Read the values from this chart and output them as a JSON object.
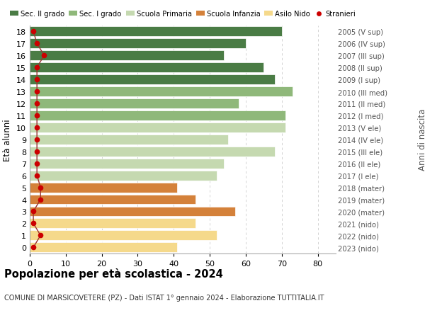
{
  "ages": [
    0,
    1,
    2,
    3,
    4,
    5,
    6,
    7,
    8,
    9,
    10,
    11,
    12,
    13,
    14,
    15,
    16,
    17,
    18
  ],
  "bar_values": [
    41,
    52,
    46,
    57,
    46,
    41,
    52,
    54,
    68,
    55,
    71,
    71,
    58,
    73,
    68,
    65,
    54,
    60,
    70
  ],
  "stranieri_values": [
    1,
    3,
    1,
    1,
    3,
    3,
    2,
    2,
    2,
    2,
    2,
    2,
    2,
    2,
    2,
    2,
    4,
    2,
    1
  ],
  "right_labels": [
    "2023 (nido)",
    "2022 (nido)",
    "2021 (nido)",
    "2020 (mater)",
    "2019 (mater)",
    "2018 (mater)",
    "2017 (I ele)",
    "2016 (II ele)",
    "2015 (III ele)",
    "2014 (IV ele)",
    "2013 (V ele)",
    "2012 (I med)",
    "2011 (II med)",
    "2010 (III med)",
    "2009 (I sup)",
    "2008 (II sup)",
    "2007 (III sup)",
    "2006 (IV sup)",
    "2005 (V sup)"
  ],
  "bar_colors": [
    "#f5d98b",
    "#f5d98b",
    "#f5d98b",
    "#d4813a",
    "#d4813a",
    "#d4813a",
    "#c5d9b0",
    "#c5d9b0",
    "#c5d9b0",
    "#c5d9b0",
    "#c5d9b0",
    "#8fb87a",
    "#8fb87a",
    "#8fb87a",
    "#4a7c45",
    "#4a7c45",
    "#4a7c45",
    "#4a7c45",
    "#4a7c45"
  ],
  "legend_labels": [
    "Sec. II grado",
    "Sec. I grado",
    "Scuola Primaria",
    "Scuola Infanzia",
    "Asilo Nido",
    "Stranieri"
  ],
  "legend_colors": [
    "#4a7c45",
    "#8fb87a",
    "#c5d9b0",
    "#d4813a",
    "#f5d98b",
    "#cc0000"
  ],
  "title": "Popolazione per età scolastica - 2024",
  "subtitle": "COMUNE DI MARSICOVETERE (PZ) - Dati ISTAT 1° gennaio 2024 - Elaborazione TUTTITALIA.IT",
  "ylabel_left": "Età alunni",
  "ylabel_right": "Anni di nascita",
  "xlim": [
    0,
    85
  ],
  "xticks": [
    0,
    10,
    20,
    30,
    40,
    50,
    60,
    70,
    80
  ],
  "bg_color": "#ffffff",
  "grid_color": "#cccccc",
  "stranieri_color": "#cc0000",
  "stranieri_line_color": "#993333",
  "bar_height": 0.82,
  "bar_edge_color": "#ffffff",
  "bar_edge_width": 0.5
}
